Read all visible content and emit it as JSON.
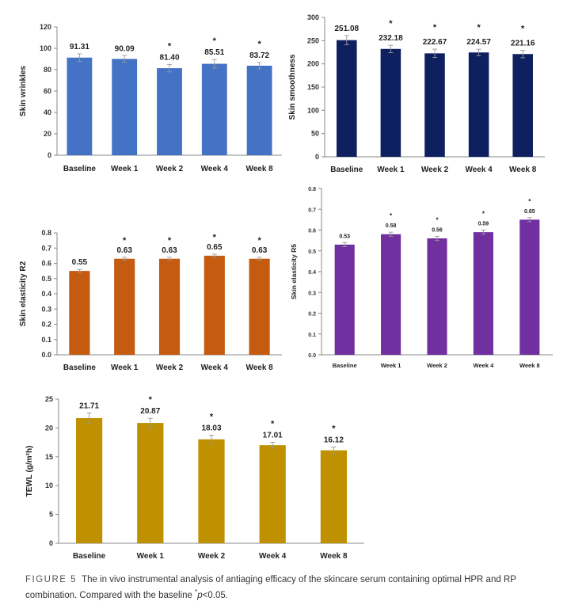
{
  "chart_data": [
    {
      "id": "wrinkles",
      "type": "bar",
      "ylabel": "Skin wrinkles",
      "categories": [
        "Baseline",
        "Week 1",
        "Week 2",
        "Week 4",
        "Week 8"
      ],
      "values": [
        91.31,
        90.09,
        81.4,
        85.51,
        83.72
      ],
      "labels": [
        "91.31",
        "90.09",
        "81.40",
        "85.51",
        "83.72"
      ],
      "errors": [
        3.5,
        3.0,
        3.5,
        4.0,
        3.0
      ],
      "significant": [
        false,
        false,
        true,
        true,
        true
      ],
      "ylim": [
        0,
        120
      ],
      "ystep": 20,
      "ytick_decimals": 0,
      "color": "#4472C4"
    },
    {
      "id": "smoothness",
      "type": "bar",
      "ylabel": "Skin smoothness",
      "categories": [
        "Baseline",
        "Week 1",
        "Week 2",
        "Week 4",
        "Week 8"
      ],
      "values": [
        251.08,
        232.18,
        222.67,
        224.57,
        221.16
      ],
      "labels": [
        "251.08",
        "232.18",
        "222.67",
        "224.57",
        "221.16"
      ],
      "errors": [
        10,
        8,
        9,
        7,
        8
      ],
      "significant": [
        false,
        true,
        true,
        true,
        true
      ],
      "ylim": [
        0,
        300
      ],
      "ystep": 50,
      "ytick_decimals": 0,
      "color": "#0E2060"
    },
    {
      "id": "r2",
      "type": "bar",
      "ylabel": "Skin elasticity R2",
      "categories": [
        "Baseline",
        "Week 1",
        "Week 2",
        "Week 4",
        "Week 8"
      ],
      "values": [
        0.55,
        0.63,
        0.63,
        0.65,
        0.63
      ],
      "labels": [
        "0.55",
        "0.63",
        "0.63",
        "0.65",
        "0.63"
      ],
      "errors": [
        0.01,
        0.01,
        0.01,
        0.01,
        0.01
      ],
      "significant": [
        false,
        true,
        true,
        true,
        true
      ],
      "ylim": [
        0,
        0.8
      ],
      "ystep": 0.1,
      "ytick_decimals": 1,
      "color": "#C55A11"
    },
    {
      "id": "r5",
      "type": "bar",
      "ylabel": "Skin elasticity R5",
      "categories": [
        "Baseline",
        "Week 1",
        "Week 2",
        "Week 4",
        "Week 8"
      ],
      "values": [
        0.53,
        0.58,
        0.56,
        0.59,
        0.65
      ],
      "labels": [
        "0.53",
        "0.58",
        "0.56",
        "0.59",
        "0.65"
      ],
      "errors": [
        0.01,
        0.01,
        0.01,
        0.01,
        0.01
      ],
      "significant": [
        false,
        true,
        true,
        true,
        true
      ],
      "ylim": [
        0,
        0.8
      ],
      "ystep": 0.1,
      "ytick_decimals": 1,
      "color": "#7030A0"
    },
    {
      "id": "tewl",
      "type": "bar",
      "ylabel": "TEWL (g/m²h)",
      "categories": [
        "Baseline",
        "Week 1",
        "Week 2",
        "Week 4",
        "Week 8"
      ],
      "values": [
        21.71,
        20.87,
        18.03,
        17.01,
        16.12
      ],
      "labels": [
        "21.71",
        "20.87",
        "18.03",
        "17.01",
        "16.12"
      ],
      "errors": [
        0.9,
        0.8,
        0.7,
        0.5,
        0.6
      ],
      "significant": [
        false,
        true,
        true,
        true,
        true
      ],
      "ylim": [
        0,
        25
      ],
      "ystep": 5,
      "ytick_decimals": 0,
      "color": "#BF9000"
    }
  ],
  "caption": {
    "figure_label": "FIGURE 5",
    "text": "The in vivo instrumental analysis of antiaging efficacy of the skincare serum containing optimal HPR and RP combination. Compared with the baseline",
    "note_marker": "*",
    "note_p": "p",
    "note_threshold": "<0.05."
  }
}
